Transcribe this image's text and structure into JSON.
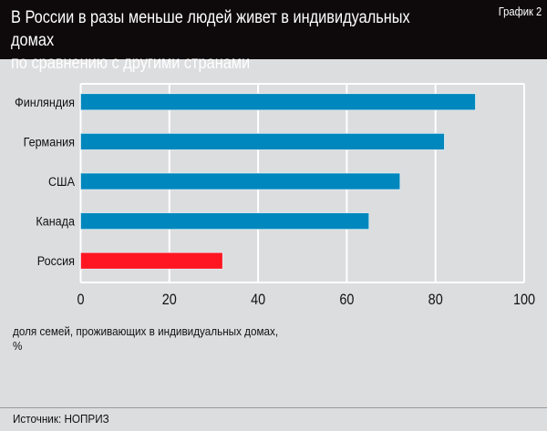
{
  "header": {
    "title": "В России в разы меньше людей живет в индивидуальных домах\nпо сравнению с другими странами",
    "badge": "График 2"
  },
  "note_line1": "доля семей, проживающих в индивидуальных домах,",
  "note_line2": "%",
  "source": "Источник: НОПРИЗ",
  "chart_data": {
    "type": "bar",
    "orientation": "horizontal",
    "categories": [
      "Финляндия",
      "Германия",
      "США",
      "Канада",
      "Россия"
    ],
    "values": [
      89,
      82,
      72,
      65,
      32
    ],
    "colors": [
      "#0087bd",
      "#0087bd",
      "#0087bd",
      "#0087bd",
      "#ff1622"
    ],
    "xlim": [
      0,
      100
    ],
    "xticks": [
      "0",
      "20",
      "40",
      "60",
      "80",
      "100"
    ],
    "xlabel": "доля семей, проживающих в индивидуальных домах, %",
    "grid": true
  }
}
